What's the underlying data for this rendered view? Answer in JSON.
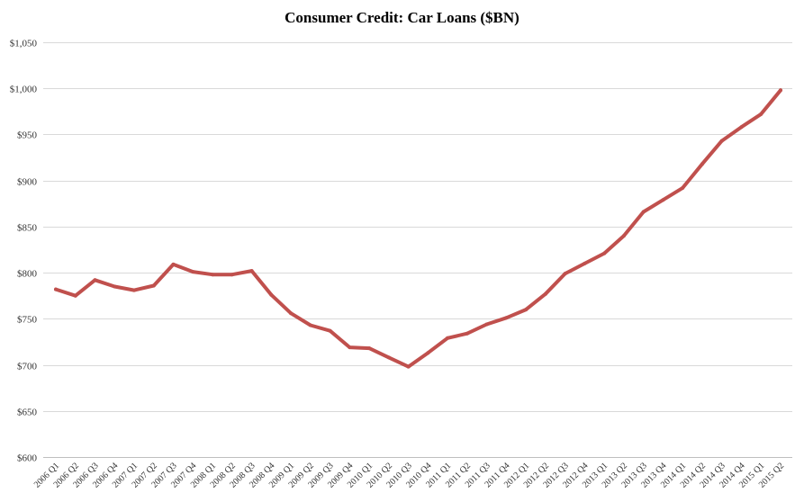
{
  "chart_data": {
    "type": "line",
    "title": "Consumer Credit: Car Loans ($BN)",
    "xlabel": "",
    "ylabel": "",
    "ylim": [
      600,
      1050
    ],
    "y_ticks": [
      600,
      650,
      700,
      750,
      800,
      850,
      900,
      950,
      1000,
      1050
    ],
    "y_tick_labels": [
      "$600",
      "$650",
      "$700",
      "$750",
      "$800",
      "$850",
      "$900",
      "$950",
      "$1,000",
      "$1,050"
    ],
    "grid": true,
    "legend": "none",
    "line_color": "#c0504d",
    "categories": [
      "2006 Q1",
      "2006 Q2",
      "2006 Q3",
      "2006 Q4",
      "2007 Q1",
      "2007 Q2",
      "2007 Q3",
      "2007 Q4",
      "2008 Q1",
      "2008 Q2",
      "2008 Q3",
      "2008 Q4",
      "2009 Q1",
      "2009 Q2",
      "2009 Q3",
      "2009 Q4",
      "2010 Q1",
      "2010 Q2",
      "2010 Q3",
      "2010 Q4",
      "2011 Q1",
      "2011 Q2",
      "2011 Q3",
      "2011 Q4",
      "2012 Q1",
      "2012 Q2",
      "2012 Q3",
      "2012 Q4",
      "2013 Q1",
      "2013 Q2",
      "2013 Q3",
      "2013 Q4",
      "2014 Q1",
      "2014 Q2",
      "2014 Q3",
      "2014 Q4",
      "2015 Q1",
      "2015 Q2"
    ],
    "series": [
      {
        "values": [
          782,
          775,
          792,
          785,
          781,
          786,
          809,
          801,
          798,
          798,
          802,
          776,
          756,
          743,
          737,
          719,
          718,
          708,
          698,
          713,
          729,
          734,
          744,
          751,
          760,
          777,
          799,
          810,
          821,
          840,
          866,
          879,
          892,
          918,
          943,
          958,
          972,
          998
        ]
      }
    ]
  }
}
